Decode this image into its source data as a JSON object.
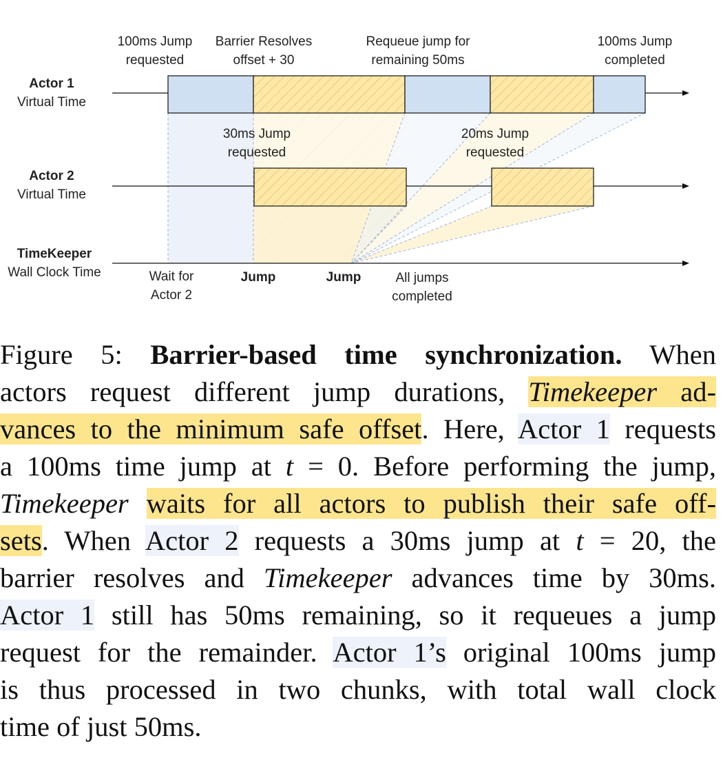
{
  "figure": {
    "top_labels": {
      "jump_requested": [
        "100ms Jump",
        "requested"
      ],
      "barrier_resolves": [
        "Barrier Resolves",
        "offset + 30"
      ],
      "requeue": [
        "Requeue jump for",
        "remaining 50ms"
      ],
      "jump_completed": [
        "100ms Jump",
        "completed"
      ]
    },
    "mid_labels": {
      "jump30": [
        "30ms Jump",
        "requested"
      ],
      "jump20": [
        "20ms Jump",
        "requested"
      ]
    },
    "rows": {
      "actor1": [
        "Actor 1",
        "Virtual Time"
      ],
      "actor2": [
        "Actor 2",
        "Virtual Time"
      ],
      "timekeeper": [
        "TimeKeeper",
        "Wall Clock Time"
      ]
    },
    "bottom_labels": {
      "wait": [
        "Wait for",
        "Actor 2"
      ],
      "jump1": "Jump",
      "jump2": "Jump",
      "all_done": [
        "All jumps",
        "completed"
      ]
    },
    "colors": {
      "blue_block": "#cfe0f3",
      "yellow_block": "#fde8a8",
      "hatch": "#e0b860",
      "highlight": "#fde58e",
      "actor_highlight": "#edf2fb"
    }
  },
  "caption": {
    "lines": [
      [
        {
          "t": "Figure 5: "
        },
        {
          "t": "Barrier-based time synchronization.",
          "s": "b"
        },
        {
          "t": " When"
        }
      ],
      [
        {
          "t": "actors request different jump durations, "
        },
        {
          "t": "Timekeeper",
          "s": "ih"
        },
        {
          "t": " ad-",
          "s": "h"
        }
      ],
      [
        {
          "t": "vances to the minimum safe offset",
          "s": "h"
        },
        {
          "t": ". Here, "
        },
        {
          "t": "Actor 1",
          "s": "u"
        },
        {
          "t": " requests"
        }
      ],
      [
        {
          "t": "a 100ms time jump at "
        },
        {
          "t": "t",
          "s": "i"
        },
        {
          "t": " = 0. Before performing the jump,"
        }
      ],
      [
        {
          "t": "Timekeeper",
          "s": "i"
        },
        {
          "t": " "
        },
        {
          "t": "waits for all actors to publish their safe off-",
          "s": "h"
        }
      ],
      [
        {
          "t": "sets",
          "s": "h"
        },
        {
          "t": ". When "
        },
        {
          "t": "Actor 2",
          "s": "u"
        },
        {
          "t": " requests a 30ms jump at "
        },
        {
          "t": "t",
          "s": "i"
        },
        {
          "t": " = 20, the"
        }
      ],
      [
        {
          "t": "barrier resolves and "
        },
        {
          "t": "Timekeeper",
          "s": "i"
        },
        {
          "t": " advances time by 30ms."
        }
      ],
      [
        {
          "t": "Actor 1",
          "s": "u"
        },
        {
          "t": " still has 50ms remaining, so it requeues a jump"
        }
      ],
      [
        {
          "t": "request for the remainder. "
        },
        {
          "t": "Actor 1’s",
          "s": "u"
        },
        {
          "t": " original 100ms jump"
        }
      ],
      [
        {
          "t": "is thus processed in two chunks, with total wall clock"
        }
      ],
      [
        {
          "t": "time of just 50ms."
        }
      ]
    ]
  }
}
